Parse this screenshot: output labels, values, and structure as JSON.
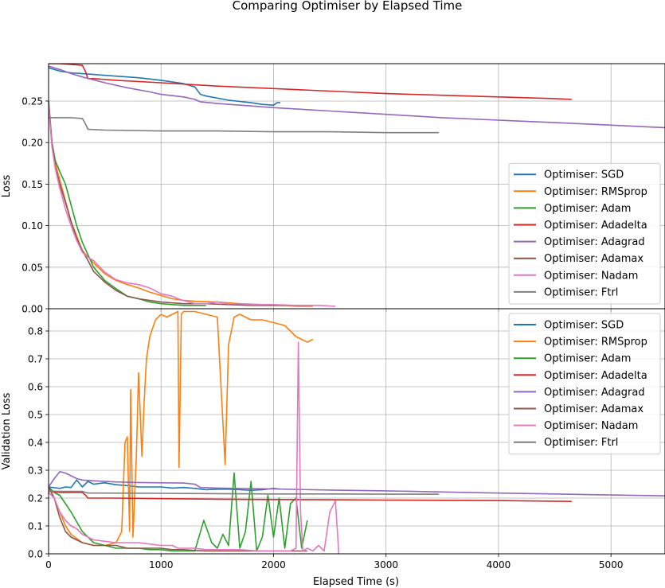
{
  "chart_data": {
    "type": "line",
    "title": "Comparing Optimiser by Elapsed Time",
    "xlabel": "Elapsed Time (s)",
    "xlim": [
      0,
      5480
    ],
    "xticks": [
      0,
      1000,
      2000,
      3000,
      4000,
      5000
    ],
    "grid": true,
    "colors": {
      "Optimiser: SGD": "#1f77b4",
      "Optimiser: RMSprop": "#ff7f0e",
      "Optimiser: Adam": "#2ca02c",
      "Optimiser: Adadelta": "#d62728",
      "Optimiser: Adagrad": "#9467bd",
      "Optimiser: Adamax": "#8c564b",
      "Optimiser: Nadam": "#e377c2",
      "Optimiser: Ftrl": "#7f7f7f"
    },
    "panels": [
      {
        "ylabel": "Loss",
        "ylim": [
          0,
          0.295
        ],
        "yticks": [
          0.0,
          0.05,
          0.1,
          0.15,
          0.2,
          0.25
        ],
        "legend": "lower-right",
        "series": [
          {
            "name": "Optimiser: SGD",
            "x": [
              0,
              100,
              200,
              400,
              600,
              800,
              1000,
              1200,
              1300,
              1350,
              1400,
              1600,
              1800,
              1900,
              2000,
              2030,
              2060
            ],
            "y": [
              0.29,
              0.286,
              0.284,
              0.282,
              0.28,
              0.278,
              0.275,
              0.271,
              0.267,
              0.258,
              0.256,
              0.251,
              0.248,
              0.246,
              0.245,
              0.248,
              0.248
            ]
          },
          {
            "name": "Optimiser: RMSprop",
            "x": [
              0,
              30,
              60,
              100,
              150,
              200,
              300,
              400,
              500,
              600,
              700,
              800,
              900,
              1000,
              1100,
              1200,
              1300,
              1500,
              1700,
              1900,
              2000,
              2100,
              2200,
              2300,
              2350
            ],
            "y": [
              0.245,
              0.2,
              0.175,
              0.155,
              0.13,
              0.105,
              0.07,
              0.055,
              0.042,
              0.034,
              0.029,
              0.025,
              0.02,
              0.016,
              0.012,
              0.01,
              0.009,
              0.008,
              0.006,
              0.005,
              0.004,
              0.004,
              0.003,
              0.003,
              0.003
            ]
          },
          {
            "name": "Optimiser: Adam",
            "x": [
              0,
              30,
              60,
              100,
              150,
              200,
              250,
              300,
              350,
              400,
              500,
              600,
              700,
              800,
              900,
              1000,
              1100,
              1200,
              1300,
              1400
            ],
            "y": [
              0.25,
              0.2,
              0.178,
              0.165,
              0.15,
              0.125,
              0.1,
              0.08,
              0.065,
              0.05,
              0.034,
              0.024,
              0.015,
              0.012,
              0.008,
              0.006,
              0.005,
              0.004,
              0.004,
              0.004
            ]
          },
          {
            "name": "Optimiser: Adadelta",
            "x": [
              0,
              100,
              200,
              300,
              330,
              350,
              400,
              600,
              1000,
              1500,
              2000,
              2500,
              3000,
              3500,
              4000,
              4500,
              4650
            ],
            "y": [
              0.295,
              0.295,
              0.294,
              0.293,
              0.285,
              0.277,
              0.277,
              0.275,
              0.272,
              0.268,
              0.265,
              0.262,
              0.259,
              0.257,
              0.255,
              0.253,
              0.252
            ]
          },
          {
            "name": "Optimiser: Adagrad",
            "x": [
              0,
              100,
              200,
              300,
              500,
              700,
              900,
              1000,
              1200,
              1300,
              1350,
              1500,
              1800,
              2000,
              2500,
              3000,
              3500,
              4000,
              4500,
              5000,
              5480
            ],
            "y": [
              0.292,
              0.288,
              0.283,
              0.279,
              0.272,
              0.266,
              0.261,
              0.258,
              0.255,
              0.252,
              0.249,
              0.247,
              0.244,
              0.242,
              0.238,
              0.234,
              0.23,
              0.227,
              0.224,
              0.221,
              0.218
            ]
          },
          {
            "name": "Optimiser: Adamax",
            "x": [
              0,
              30,
              60,
              100,
              150,
              200,
              250,
              300,
              350,
              400,
              500,
              600,
              700,
              800,
              900,
              1000,
              1200,
              1400,
              1600,
              1800,
              2000,
              2200,
              2300
            ],
            "y": [
              0.25,
              0.2,
              0.17,
              0.15,
              0.128,
              0.105,
              0.085,
              0.07,
              0.058,
              0.045,
              0.032,
              0.022,
              0.015,
              0.012,
              0.01,
              0.008,
              0.006,
              0.006,
              0.005,
              0.004,
              0.004,
              0.004,
              0.004
            ]
          },
          {
            "name": "Optimiser: Nadam",
            "x": [
              0,
              30,
              60,
              100,
              150,
              200,
              250,
              300,
              350,
              400,
              500,
              600,
              700,
              800,
              900,
              1000,
              1100,
              1150,
              1200,
              1300,
              1400,
              1500,
              1600,
              1700,
              1800,
              2000,
              2200,
              2400,
              2550
            ],
            "y": [
              0.245,
              0.195,
              0.168,
              0.145,
              0.12,
              0.1,
              0.082,
              0.068,
              0.062,
              0.058,
              0.044,
              0.035,
              0.031,
              0.029,
              0.025,
              0.018,
              0.015,
              0.012,
              0.01,
              0.006,
              0.006,
              0.008,
              0.006,
              0.006,
              0.005,
              0.005,
              0.004,
              0.004,
              0.003
            ]
          },
          {
            "name": "Optimiser: Ftrl",
            "x": [
              0,
              30,
              100,
              200,
              300,
              330,
              350,
              500,
              1000,
              1500,
              2000,
              2500,
              3000,
              3470
            ],
            "y": [
              0.23,
              0.23,
              0.23,
              0.23,
              0.229,
              0.222,
              0.216,
              0.215,
              0.214,
              0.214,
              0.213,
              0.213,
              0.212,
              0.212
            ]
          }
        ]
      },
      {
        "ylabel": "Validation Loss",
        "ylim": [
          0,
          0.88
        ],
        "yticks": [
          0.0,
          0.1,
          0.2,
          0.3,
          0.4,
          0.5,
          0.6,
          0.7,
          0.8
        ],
        "legend": "upper-right",
        "series": [
          {
            "name": "Optimiser: SGD",
            "x": [
              0,
              100,
              150,
              200,
              250,
              300,
              350,
              400,
              500,
              600,
              700,
              800,
              900,
              1000,
              1100,
              1200,
              1300,
              1400,
              1500,
              1600,
              1700,
              1800,
              1900,
              2000,
              2060
            ],
            "y": [
              0.24,
              0.235,
              0.24,
              0.238,
              0.265,
              0.24,
              0.26,
              0.25,
              0.255,
              0.248,
              0.245,
              0.24,
              0.24,
              0.24,
              0.236,
              0.238,
              0.235,
              0.23,
              0.232,
              0.232,
              0.23,
              0.228,
              0.23,
              0.235,
              0.232
            ]
          },
          {
            "name": "Optimiser: RMSprop",
            "x": [
              0,
              50,
              100,
              150,
              200,
              300,
              400,
              500,
              600,
              650,
              680,
              700,
              720,
              730,
              750,
              780,
              800,
              830,
              850,
              870,
              900,
              950,
              1000,
              1050,
              1100,
              1150,
              1160,
              1180,
              1200,
              1300,
              1400,
              1500,
              1570,
              1600,
              1650,
              1700,
              1800,
              1900,
              2000,
              2100,
              2200,
              2300,
              2350
            ],
            "y": [
              0.24,
              0.2,
              0.15,
              0.1,
              0.07,
              0.04,
              0.03,
              0.03,
              0.04,
              0.08,
              0.4,
              0.42,
              0.08,
              0.59,
              0.06,
              0.35,
              0.65,
              0.35,
              0.55,
              0.7,
              0.78,
              0.84,
              0.86,
              0.85,
              0.86,
              0.87,
              0.31,
              0.86,
              0.87,
              0.87,
              0.86,
              0.85,
              0.32,
              0.75,
              0.85,
              0.86,
              0.84,
              0.84,
              0.83,
              0.82,
              0.78,
              0.76,
              0.77
            ]
          },
          {
            "name": "Optimiser: Adam",
            "x": [
              0,
              50,
              100,
              150,
              200,
              300,
              400,
              500,
              600,
              700,
              800,
              900,
              1000,
              1100,
              1200,
              1300,
              1380,
              1450,
              1500,
              1550,
              1600,
              1650,
              1700,
              1750,
              1800,
              1850,
              1900,
              1950,
              2000,
              2050,
              2100,
              2150,
              2200,
              2250,
              2300
            ],
            "y": [
              0.24,
              0.22,
              0.21,
              0.18,
              0.15,
              0.08,
              0.04,
              0.03,
              0.02,
              0.02,
              0.02,
              0.015,
              0.015,
              0.01,
              0.01,
              0.01,
              0.12,
              0.04,
              0.02,
              0.07,
              0.03,
              0.29,
              0.02,
              0.08,
              0.26,
              0.01,
              0.06,
              0.21,
              0.06,
              0.2,
              0.02,
              0.18,
              0.2,
              0.02,
              0.12
            ]
          },
          {
            "name": "Optimiser: Adadelta",
            "x": [
              0,
              100,
              200,
              300,
              330,
              350,
              400,
              600,
              1000,
              1500,
              2000,
              2500,
              3000,
              3500,
              4000,
              4500,
              4650
            ],
            "y": [
              0.225,
              0.22,
              0.22,
              0.22,
              0.21,
              0.2,
              0.2,
              0.2,
              0.198,
              0.196,
              0.195,
              0.194,
              0.193,
              0.192,
              0.191,
              0.189,
              0.188
            ]
          },
          {
            "name": "Optimiser: Adagrad",
            "x": [
              0,
              50,
              100,
              150,
              200,
              250,
              300,
              400,
              600,
              800,
              1000,
              1200,
              1300,
              1350,
              1500,
              2000,
              2500,
              3000,
              3500,
              4000,
              4500,
              5000,
              5480
            ],
            "y": [
              0.24,
              0.27,
              0.295,
              0.29,
              0.28,
              0.27,
              0.265,
              0.262,
              0.258,
              0.256,
              0.255,
              0.254,
              0.25,
              0.238,
              0.236,
              0.233,
              0.229,
              0.226,
              0.222,
              0.218,
              0.215,
              0.211,
              0.208
            ]
          },
          {
            "name": "Optimiser: Adamax",
            "x": [
              0,
              50,
              100,
              150,
              200,
              300,
              400,
              500,
              600,
              700,
              800,
              900,
              1000,
              1100,
              1200,
              1300,
              1400,
              1500,
              1600,
              1700,
              1800,
              2000,
              2200,
              2300
            ],
            "y": [
              0.24,
              0.2,
              0.13,
              0.08,
              0.06,
              0.04,
              0.03,
              0.03,
              0.03,
              0.02,
              0.02,
              0.02,
              0.02,
              0.015,
              0.015,
              0.012,
              0.01,
              0.01,
              0.01,
              0.01,
              0.01,
              0.01,
              0.01,
              0.01
            ]
          },
          {
            "name": "Optimiser: Nadam",
            "x": [
              0,
              50,
              100,
              150,
              200,
              250,
              300,
              350,
              400,
              500,
              600,
              700,
              800,
              900,
              1000,
              1100,
              1150,
              1200,
              1300,
              1400,
              1500,
              1600,
              1700,
              1800,
              1900,
              2000,
              2100,
              2150,
              2200,
              2220,
              2240,
              2260,
              2300,
              2350,
              2400,
              2450,
              2500,
              2550,
              2580
            ],
            "y": [
              0.22,
              0.2,
              0.15,
              0.12,
              0.1,
              0.09,
              0.07,
              0.06,
              0.05,
              0.045,
              0.04,
              0.04,
              0.04,
              0.035,
              0.03,
              0.03,
              0.02,
              0.02,
              0.02,
              0.015,
              0.015,
              0.015,
              0.015,
              0.012,
              0.01,
              0.01,
              0.01,
              0.01,
              0.02,
              0.76,
              0.15,
              0.01,
              0.02,
              0.01,
              0.03,
              0.01,
              0.15,
              0.19,
              0.0
            ]
          },
          {
            "name": "Optimiser: Ftrl",
            "x": [
              0,
              30,
              100,
              200,
              300,
              330,
              350,
              500,
              1000,
              1500,
              2000,
              2500,
              3000,
              3470
            ],
            "y": [
              0.225,
              0.225,
              0.224,
              0.224,
              0.224,
              0.22,
              0.218,
              0.218,
              0.217,
              0.216,
              0.215,
              0.215,
              0.214,
              0.214
            ]
          }
        ]
      }
    ]
  }
}
